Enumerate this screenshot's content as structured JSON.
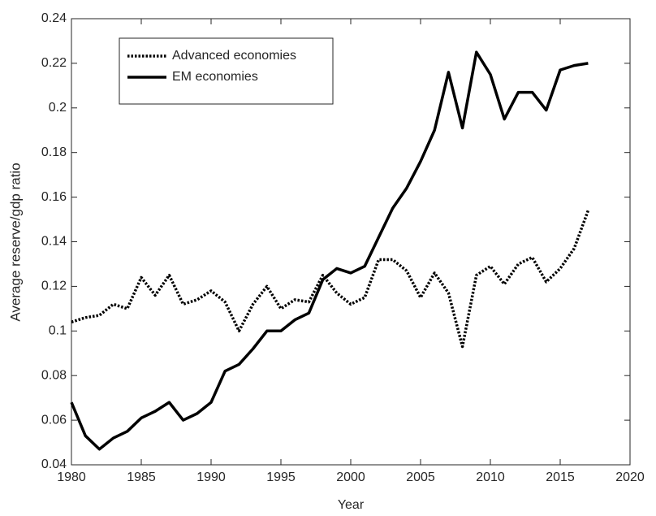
{
  "chart_data": {
    "type": "line",
    "xlabel": "Year",
    "ylabel": "Average reserve/gdp ratio",
    "x": [
      1980,
      1981,
      1982,
      1983,
      1984,
      1985,
      1986,
      1987,
      1988,
      1989,
      1990,
      1991,
      1992,
      1993,
      1994,
      1995,
      1996,
      1997,
      1998,
      1999,
      2000,
      2001,
      2002,
      2003,
      2004,
      2005,
      2006,
      2007,
      2008,
      2009,
      2010,
      2011,
      2012,
      2013,
      2014,
      2015,
      2016,
      2017
    ],
    "series": [
      {
        "name": "Advanced economies",
        "color": "#000000",
        "linestyle": "dotted",
        "values": [
          0.104,
          0.106,
          0.107,
          0.112,
          0.11,
          0.124,
          0.116,
          0.125,
          0.112,
          0.114,
          0.118,
          0.113,
          0.1,
          0.112,
          0.12,
          0.11,
          0.114,
          0.113,
          0.125,
          0.117,
          0.112,
          0.115,
          0.132,
          0.132,
          0.127,
          0.115,
          0.126,
          0.117,
          0.093,
          0.125,
          0.129,
          0.121,
          0.13,
          0.133,
          0.122,
          0.128,
          0.137,
          0.154
        ]
      },
      {
        "name": "EM economies",
        "color": "#000000",
        "linestyle": "solid",
        "values": [
          0.068,
          0.053,
          0.047,
          0.052,
          0.055,
          0.061,
          0.064,
          0.068,
          0.06,
          0.063,
          0.068,
          0.082,
          0.085,
          0.092,
          0.1,
          0.1,
          0.105,
          0.108,
          0.123,
          0.128,
          0.126,
          0.129,
          0.142,
          0.155,
          0.164,
          0.176,
          0.19,
          0.216,
          0.191,
          0.225,
          0.215,
          0.195,
          0.207,
          0.207,
          0.199,
          0.217,
          0.219,
          0.22
        ]
      }
    ],
    "xlim": [
      1980,
      2020
    ],
    "xticks": [
      1980,
      1985,
      1990,
      1995,
      2000,
      2005,
      2010,
      2015,
      2020
    ],
    "ylim": [
      0.04,
      0.24
    ],
    "yticks": [
      0.04,
      0.06,
      0.08,
      0.1,
      0.12,
      0.14,
      0.16,
      0.18,
      0.2,
      0.22,
      0.24
    ],
    "legend": "upper left",
    "grid": false
  }
}
